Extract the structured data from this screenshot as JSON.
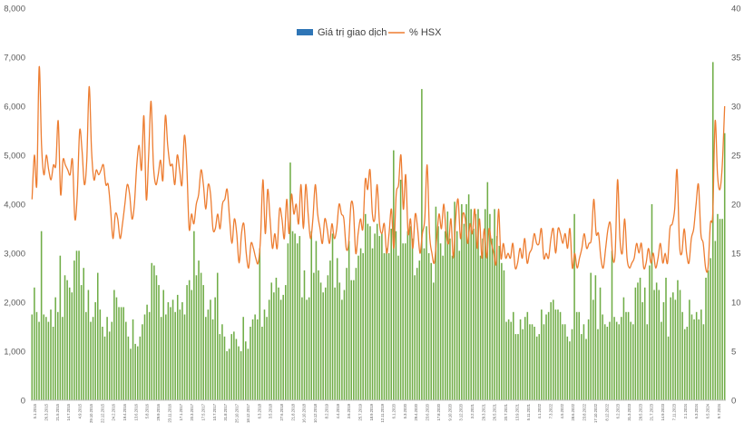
{
  "chart_data": {
    "type": "bar+line",
    "title": "",
    "legend": {
      "placement": "top-center",
      "items": [
        {
          "label": "Giá trị giao dịch",
          "kind": "bar",
          "color": "#2E75B6"
        },
        {
          "label": "% HSX",
          "kind": "line",
          "color": "#ED7D31"
        }
      ]
    },
    "y_left": {
      "min": 0,
      "max": 8000,
      "ticks": [
        0,
        1000,
        2000,
        3000,
        4000,
        5000,
        6000,
        7000,
        8000
      ],
      "tick_labels": [
        "0",
        "1,000",
        "2,000",
        "3,000",
        "4,000",
        "5,000",
        "6,000",
        "7,000",
        "8,000"
      ]
    },
    "y_right": {
      "min": 0,
      "max": 40,
      "ticks": [
        0,
        5,
        10,
        15,
        20,
        25,
        30,
        35,
        40
      ],
      "tick_labels": [
        "0",
        "5",
        "10",
        "15",
        "20",
        "25",
        "30",
        "35",
        "40"
      ]
    },
    "bar_color": "#70AD47",
    "line_color": "#ED7D31",
    "x_tick_labels": [
      "5.1.2015",
      "26.3.2015",
      "21.5.2015",
      "14.7.2015",
      "4.9.2015",
      "29.10.2015",
      "22.12.2015",
      "24.2.2016",
      "19.4.2016",
      "13.6.2016",
      "5.8.2016",
      "29.9.2016",
      "23.11.2016",
      "17.1.2017",
      "20.3.2017",
      "17.5.2017",
      "10.7.2017",
      "31.8.2017",
      "25.10.2017",
      "18.12.2017",
      "6.3.2018",
      "3.5.2018",
      "27.6.2018",
      "21.8.2018",
      "16.10.2018",
      "10.12.2018",
      "8.2.2019",
      "4.4.2019",
      "3.6.2019",
      "25.7.2019",
      "18.9.2019",
      "12.11.2019",
      "6.1.2020",
      "5.3.2020",
      "29.4.2020",
      "23.6.2020",
      "17.8.2020",
      "9.10.2020",
      "3.12.2020",
      "3.2.2021",
      "29.3.2021",
      "26.5.2021",
      "20.7.2021",
      "13.9.2021",
      "5.11.2021",
      "4.1.2022",
      "7.3.2022",
      "4.5.2022",
      "28.6.2022",
      "23.8.2022",
      "17.10.2022",
      "8.12.2022",
      "6.2.2023",
      "31.3.2023",
      "29.5.2023",
      "21.7.2023",
      "14.9.2023",
      "7.11.2023",
      "2.1.2024",
      "6.3.2024",
      "6.5.2024",
      "9.7.2024"
    ],
    "series": [
      {
        "name": "Giá trị giao dịch",
        "axis": "left",
        "values": [
          1750,
          2300,
          1800,
          1600,
          3450,
          1750,
          1700,
          1600,
          1850,
          1500,
          2100,
          1800,
          2950,
          1700,
          2550,
          2450,
          2300,
          2200,
          2850,
          3050,
          3050,
          2350,
          2700,
          1800,
          2250,
          1600,
          1700,
          2000,
          2600,
          1850,
          1500,
          1300,
          1700,
          1400,
          1600,
          2250,
          2100,
          1900,
          1900,
          1900,
          1600,
          1300,
          1050,
          1650,
          1150,
          1100,
          1300,
          1550,
          1750,
          1950,
          1800,
          2800,
          2750,
          2550,
          2350,
          1700,
          2250,
          1750,
          2000,
          1900,
          2050,
          1800,
          2150,
          1850,
          2000,
          1750,
          2350,
          2450,
          2250,
          3450,
          2550,
          2850,
          2600,
          2350,
          1700,
          1850,
          2050,
          1650,
          2100,
          2600,
          1350,
          1550,
          1300,
          1000,
          1050,
          1350,
          1400,
          1250,
          1100,
          1000,
          1700,
          1200,
          1050,
          1500,
          1650,
          1750,
          1650,
          3100,
          1500,
          1850,
          1700,
          2050,
          2400,
          2200,
          2500,
          2300,
          2050,
          2150,
          2350,
          3200,
          4850,
          3450,
          3400,
          3200,
          3350,
          2100,
          2650,
          2050,
          2100,
          3450,
          2600,
          3250,
          2650,
          2400,
          2200,
          2300,
          2550,
          2850,
          3400,
          2300,
          2900,
          2400,
          2050,
          2250,
          2700,
          3250,
          2450,
          2450,
          2700,
          2950,
          3100,
          3000,
          3800,
          3600,
          3550,
          3100,
          3400,
          3600,
          3350,
          3400,
          3000,
          3100,
          3000,
          3500,
          5100,
          3450,
          2950,
          4500,
          3200,
          3200,
          3450,
          3550,
          3300,
          2550,
          2700,
          2850,
          6350,
          3100,
          3550,
          3000,
          2800,
          2400,
          3950,
          3550,
          3200,
          2950,
          3450,
          3850,
          3300,
          2950,
          4050,
          3450,
          3050,
          4000,
          3600,
          4000,
          4200,
          3900,
          3500,
          3800,
          3900,
          2950,
          3300,
          3900,
          4450,
          3800,
          3300,
          3900,
          3350,
          3150,
          2800,
          2650,
          1600,
          1650,
          1600,
          1800,
          1350,
          1350,
          1650,
          1450,
          1700,
          1800,
          1550,
          1550,
          1500,
          1300,
          1350,
          1850,
          1550,
          1750,
          1800,
          2000,
          2050,
          1850,
          1850,
          1800,
          1550,
          1550,
          1300,
          1200,
          1450,
          3800,
          1800,
          1800,
          1350,
          1550,
          1250,
          1650,
          2600,
          2050,
          2550,
          1450,
          2300,
          1750,
          1550,
          1500,
          1600,
          3050,
          1700,
          1600,
          1550,
          1700,
          2100,
          1800,
          1800,
          1600,
          1550,
          2300,
          2400,
          2500,
          2000,
          2300,
          1550,
          2750,
          4000,
          2250,
          2400,
          2250,
          1600,
          2000,
          2500,
          1300,
          2100,
          2200,
          2050,
          2450,
          2250,
          1800,
          1450,
          1500,
          2050,
          1750,
          1650,
          1800,
          1650,
          1850,
          1550,
          2500,
          2650,
          2900,
          6900,
          3250,
          3800,
          3700,
          3700,
          5450
        ]
      },
      {
        "name": "% HSX",
        "axis": "right",
        "values": [
          20.5,
          25,
          22,
          34,
          26,
          23,
          25,
          23.5,
          22.5,
          24,
          24,
          28.5,
          21,
          24.5,
          24,
          23.5,
          23,
          24.5,
          18.5,
          21,
          27.5,
          25.5,
          22,
          24.5,
          32,
          25.5,
          22.5,
          23.5,
          23,
          23.5,
          24,
          22,
          22,
          19.5,
          16.5,
          19,
          18.5,
          16.5,
          18,
          20,
          22,
          21,
          18.5,
          20,
          24,
          26,
          23.5,
          29,
          20.5,
          25,
          30.5,
          24,
          22,
          23,
          24.5,
          22.5,
          29,
          26,
          24,
          24,
          22,
          25,
          23.5,
          22,
          27,
          24,
          17.5,
          19,
          18,
          20,
          21,
          23.5,
          22,
          19.5,
          22,
          21,
          17.5,
          17.5,
          19,
          17.5,
          20,
          20.5,
          21.5,
          18.5,
          16,
          18.5,
          17,
          14,
          17,
          18,
          15,
          13.5,
          16,
          15.5,
          14.5,
          14,
          16.5,
          22.5,
          17,
          21.5,
          18.5,
          15.5,
          17,
          15.5,
          19.5,
          18.5,
          16.5,
          20.5,
          17,
          21,
          19,
          20,
          18,
          22,
          17.5,
          22,
          19,
          16.5,
          18.5,
          22,
          19,
          17.5,
          16,
          18.5,
          17.5,
          16,
          18,
          16.5,
          17.5,
          20,
          19,
          18.5,
          15.5,
          16,
          20,
          19.5,
          15,
          17,
          18.5,
          17.5,
          22.5,
          21.5,
          23.5,
          19,
          18.5,
          22,
          18,
          17,
          18,
          15,
          17,
          19.5,
          15.5,
          21,
          22,
          25,
          19.5,
          23,
          17,
          18.5,
          15.5,
          19,
          17.5,
          15,
          17,
          18.5,
          24,
          17,
          15,
          14,
          16.5,
          19,
          17.5,
          20,
          17,
          16,
          18.5,
          14.5,
          18.5,
          20.5,
          16.5,
          19,
          18.5,
          16,
          18,
          17,
          19.5,
          15.5,
          18.5,
          14.5,
          17.5,
          14.5,
          17.5,
          16,
          15,
          14,
          19.5,
          14.5,
          16,
          14.5,
          15,
          14.5,
          16,
          13.5,
          14,
          15.5,
          14.5,
          16.5,
          14,
          15,
          15.5,
          17,
          16,
          16,
          17.5,
          14.5,
          15,
          14.5,
          16.5,
          17.5,
          15,
          17.5,
          17,
          16,
          17,
          15.5,
          17.5,
          13.5,
          15,
          13.5,
          14.5,
          15.5,
          17,
          15.5,
          16,
          16.5,
          20.5,
          17,
          17,
          14.5,
          13.5,
          15.5,
          17.5,
          18,
          14.5,
          15,
          22.5,
          16.5,
          15,
          18.5,
          14.5,
          13.5,
          14,
          14.5,
          16,
          15,
          16,
          13.5,
          14,
          15.5,
          14,
          15,
          13.5,
          14.5,
          16,
          14,
          15,
          14,
          17.5,
          18,
          19.5,
          23.5,
          16,
          15,
          17.5,
          15,
          14,
          16.5,
          17.5,
          20,
          22,
          17,
          16,
          13.5,
          13.5,
          18,
          19,
          28.5,
          23,
          21.5,
          24,
          30
        ]
      }
    ]
  }
}
